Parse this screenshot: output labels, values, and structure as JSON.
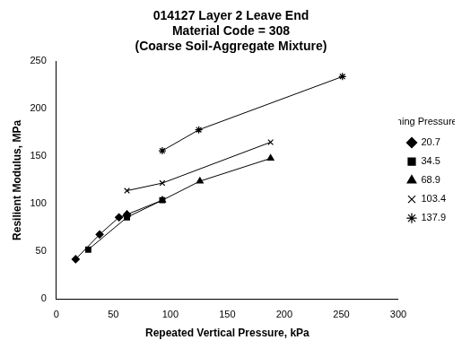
{
  "chart_data": {
    "type": "line",
    "title": [
      "014127 Layer 2 Leave End",
      "Material Code = 308",
      "(Coarse Soil-Aggregate Mixture)"
    ],
    "x_label": "Repeated Vertical Pressure, kPa",
    "y_label": "Resilient Modulus, MPa",
    "legend_title": "Confining Pressure, kPa",
    "legend": "right",
    "grid": false,
    "xlim": [
      0,
      300
    ],
    "xticks": [
      0,
      50,
      100,
      150,
      200,
      250,
      300
    ],
    "ylim": [
      0,
      250
    ],
    "yticks": [
      0,
      50,
      100,
      150,
      200,
      250
    ],
    "series": [
      {
        "name": "20.7",
        "color": "#000000",
        "marker": "diamond",
        "x": [
          17,
          38,
          55,
          62
        ],
        "values": [
          42,
          68,
          86,
          89
        ]
      },
      {
        "name": "34.5",
        "color": "#000000",
        "marker": "square",
        "x": [
          28,
          62,
          93
        ],
        "values": [
          52,
          86,
          104
        ]
      },
      {
        "name": "68.9",
        "color": "#000000",
        "marker": "triangle",
        "x": [
          62,
          93,
          126,
          188
        ],
        "values": [
          89,
          104,
          124,
          148
        ]
      },
      {
        "name": "103.4",
        "color": "#000000",
        "marker": "x",
        "x": [
          62,
          93,
          188
        ],
        "values": [
          114,
          122,
          165
        ]
      },
      {
        "name": "137.9",
        "color": "#000000",
        "marker": "star",
        "x": [
          93,
          125,
          251
        ],
        "values": [
          156,
          178,
          234
        ]
      }
    ]
  }
}
